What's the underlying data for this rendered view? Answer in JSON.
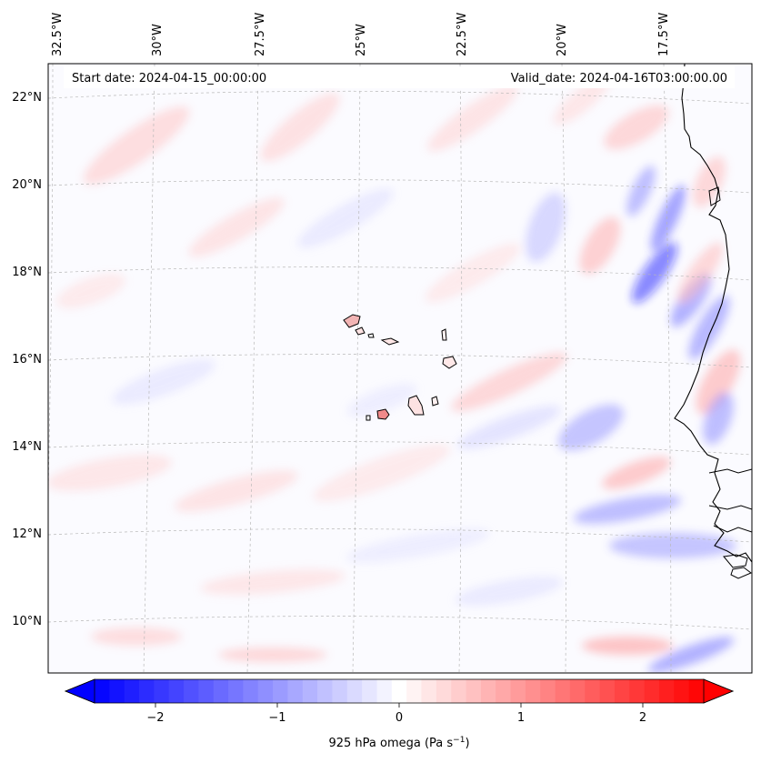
{
  "map": {
    "start_label": "Start date: 2024-04-15_00:00:00",
    "valid_label": "Valid_date: 2024-04-16T03:00:00.00",
    "lon_labels": [
      "32.5°W",
      "30°W",
      "27.5°W",
      "25°W",
      "22.5°W",
      "20°W",
      "17.5°W"
    ],
    "lat_labels": [
      "22°N",
      "20°N",
      "18°N",
      "16°N",
      "14°N",
      "12°N",
      "10°N"
    ],
    "field": "925 hPa omega",
    "colors": {
      "negative": "#0000ff",
      "zero": "#ffffff",
      "positive": "#ff0000",
      "coast": "#000000",
      "grid": "#b0b0b0"
    }
  },
  "colorbar": {
    "label_text": "925 hPa omega (Pa s",
    "label_exp": "−1",
    "label_close": ")",
    "tick_labels": [
      "−2",
      "−1",
      "0",
      "1",
      "2"
    ],
    "tick_values": [
      -2,
      -1,
      0,
      1,
      2
    ],
    "range": [
      -2.5,
      2.5
    ],
    "levels": 41
  }
}
